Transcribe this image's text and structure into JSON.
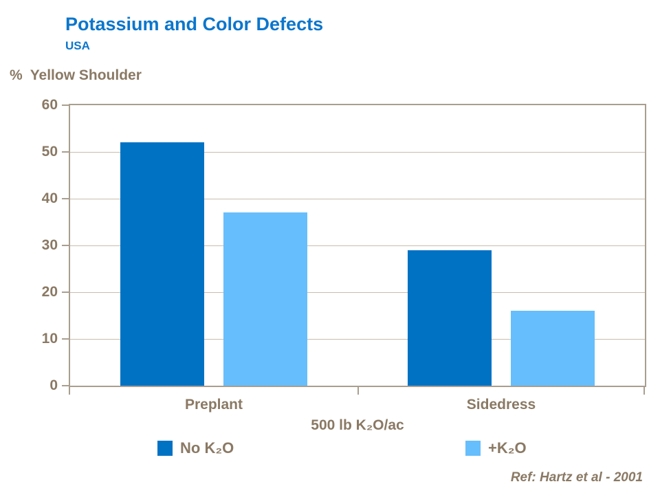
{
  "title": "Potassium and Color Defects",
  "subtitle": "USA",
  "y_axis_prefix": "%",
  "y_axis_text": "Yellow Shoulder",
  "ref_note": "Ref: Hartz et al - 2001",
  "colors": {
    "title_blue": "#0B76CC",
    "bar_dark_blue": "#0072C4",
    "bar_light_blue": "#66BEFC",
    "axis_text_brown": "#8A7964",
    "gridline": "#C7BDAE",
    "frame": "#A99E8F",
    "background": "#FFFFFF"
  },
  "chart_data": {
    "type": "bar",
    "title": "Potassium and Color Defects",
    "subtitle": "USA",
    "ylabel": "% Yellow Shoulder",
    "xlabel": "500 lb K₂O/ac",
    "categories": [
      "Preplant",
      "Sidedress"
    ],
    "series": [
      {
        "name": "No K₂O",
        "color": "#0072C4",
        "values": [
          52,
          29
        ]
      },
      {
        "name": "+K₂O",
        "color": "#66BEFC",
        "values": [
          37,
          16
        ]
      }
    ],
    "ylim": [
      0,
      60
    ],
    "yticks": [
      0,
      10,
      20,
      30,
      40,
      50,
      60
    ],
    "grid": "horizontal",
    "legend_position": "bottom",
    "annotation": "Ref: Hartz et al - 2001"
  }
}
